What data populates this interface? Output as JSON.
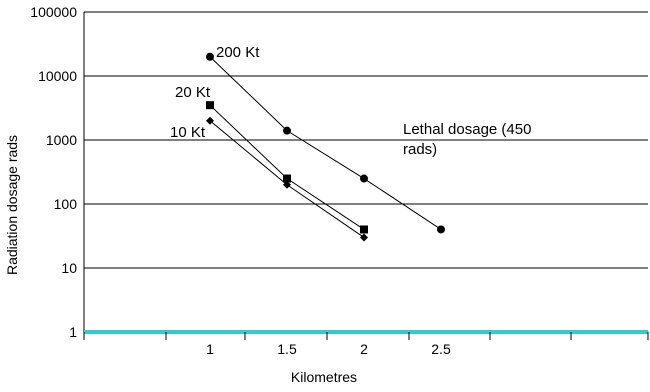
{
  "chart_data": {
    "type": "line",
    "xlabel": "Kilometres",
    "ylabel": "Radiation dosage rads",
    "y_scale": "log",
    "ylim": [
      1,
      100000
    ],
    "x_ticks": [
      "1",
      "1.5",
      "2",
      "2.5"
    ],
    "y_ticks": [
      "1",
      "10",
      "100",
      "1000",
      "10000",
      "100000"
    ],
    "grid": "horizontal",
    "colors": {
      "axis_band": "#33CCCC",
      "lines": "#000000"
    },
    "series": [
      {
        "name": "200 Kt",
        "marker": "circle",
        "x": [
          1,
          1.5,
          2,
          2.5
        ],
        "y": [
          20000,
          1400,
          250,
          40
        ]
      },
      {
        "name": "20 Kt",
        "marker": "square",
        "x": [
          1,
          1.5,
          2
        ],
        "y": [
          3500,
          250,
          40
        ]
      },
      {
        "name": "10 Kt",
        "marker": "diamond",
        "x": [
          1,
          1.5,
          2
        ],
        "y": [
          2000,
          200,
          30
        ]
      }
    ],
    "annotations": [
      {
        "text_lines": [
          "Lethal      dosage  (450",
          "rads)"
        ]
      }
    ]
  }
}
